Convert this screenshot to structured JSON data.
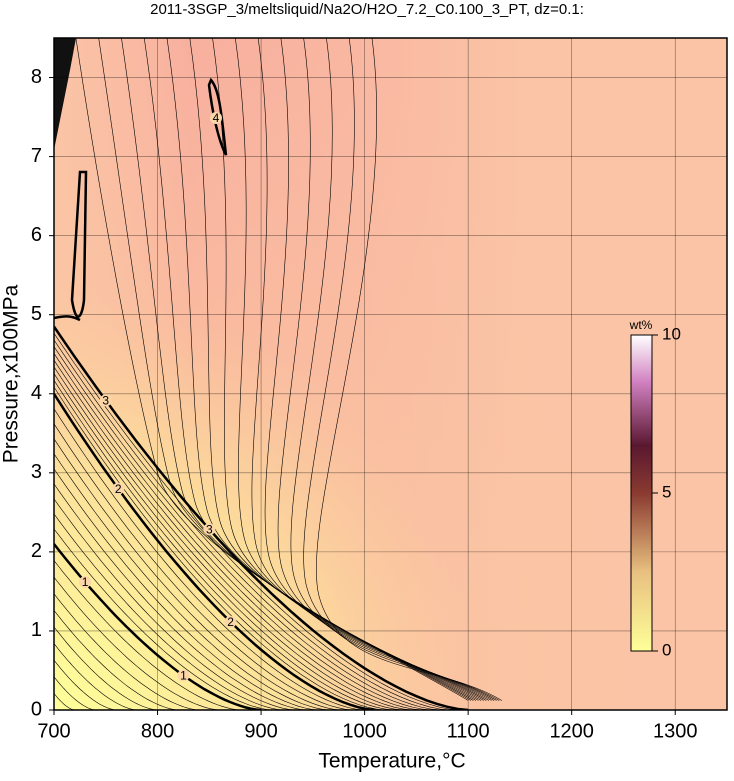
{
  "chart_data": {
    "type": "contour",
    "title": "2011-3SGP_3/meltsliquid/Na2O/H2O_7.2_C0.100_3_PT, dz=0.1:",
    "x_label": "Temperature,°C",
    "y_label": "Pressure,x100MPa",
    "xlim": [
      700,
      1350
    ],
    "xticks": [
      700,
      800,
      900,
      1000,
      1100,
      1200,
      1300
    ],
    "ylim": [
      0,
      8.5
    ],
    "yticks": [
      0,
      1,
      2,
      3,
      4,
      5,
      6,
      7,
      8
    ],
    "grid": true,
    "contour_labels": [
      1,
      1,
      2,
      2,
      3,
      3,
      4
    ],
    "colorbar": {
      "label": "wt%",
      "lim": [
        0,
        10
      ],
      "ticks": [
        0,
        5,
        10
      ]
    }
  }
}
